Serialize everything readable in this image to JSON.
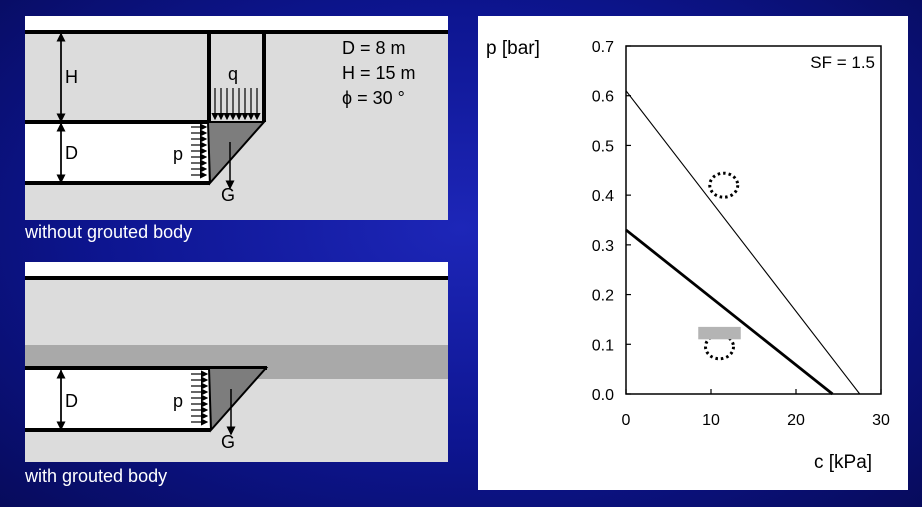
{
  "top_panel": {
    "caption": "without grouted body",
    "labels": {
      "H": "H",
      "D": "D",
      "q": "q",
      "p": "p",
      "G": "G"
    },
    "params": {
      "d": "D = 8 m",
      "h": "H = 15 m",
      "phi": "ϕ = 30 °"
    }
  },
  "bottom_panel": {
    "caption": "with grouted body",
    "labels": {
      "D": "D",
      "p": "p",
      "G": "G"
    }
  },
  "chart_data": {
    "type": "line",
    "annotation": "SF = 1.5",
    "xlabel": "c [kPa]",
    "ylabel": "p [bar]",
    "xlim": [
      0,
      30
    ],
    "ylim": [
      0,
      0.7
    ],
    "xticks": [
      0,
      10,
      20,
      30
    ],
    "yticks": [
      0.0,
      0.1,
      0.2,
      0.3,
      0.4,
      0.5,
      0.6,
      0.7
    ],
    "xtick_labels": [
      "0",
      "10",
      "20",
      "30"
    ],
    "ytick_labels": [
      "0.0",
      "0.1",
      "0.2",
      "0.3",
      "0.4",
      "0.5",
      "0.6",
      "0.7"
    ],
    "series": [
      {
        "style": "thin",
        "x": [
          0,
          27.5
        ],
        "y": [
          0.61,
          0.0
        ]
      },
      {
        "style": "thick",
        "x": [
          0,
          24.3
        ],
        "y": [
          0.33,
          0.0
        ]
      }
    ],
    "markers": [
      {
        "shape": "dotted-ellipse",
        "x": 11.5,
        "y": 0.42
      },
      {
        "shape": "dotted-ellipse",
        "x": 11.0,
        "y": 0.095
      },
      {
        "shape": "grey-rectangle",
        "x": [
          8.5,
          13.5
        ],
        "y": [
          0.11,
          0.135
        ]
      }
    ]
  }
}
